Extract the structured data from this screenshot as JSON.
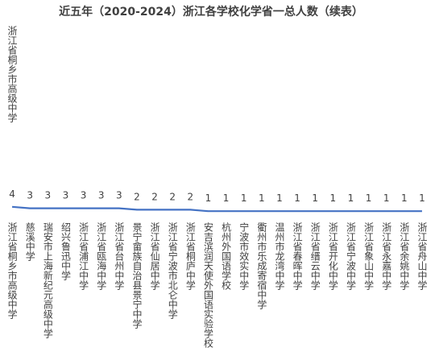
{
  "chart_data": {
    "type": "line",
    "title": "近五年（2020-2024）浙江各学校化学省一总人数（续表）",
    "overlap_label": "浙江省桐乡市高级中学",
    "categories": [
      "浙江省桐乡市高级中学",
      "慈溪中学",
      "瑞安市上海新纪元高级中学",
      "绍兴鲁迅中学",
      "浙江省浦江中学",
      "浙江省瓯海中学",
      "浙江省台州中学",
      "景宁畲族自治县景宁中学",
      "浙江省仙居中学",
      "浙江省宁波市北仑中学",
      "浙江省桐庐中学",
      "安吉滨润天使外国语实验学校",
      "杭州外国语学校",
      "宁波市效实中学",
      "衢州市乐成寄宿中学",
      "温州市龙湾中学",
      "浙江省春晖中学",
      "浙江省缙云中学",
      "浙江省开化中学",
      "浙江省宁波中学",
      "浙江省象山中学",
      "浙江省永嘉中学",
      "浙江省余姚中学",
      "浙江省舟山中学"
    ],
    "values": [
      4,
      3,
      3,
      3,
      3,
      3,
      3,
      2,
      2,
      2,
      2,
      1,
      1,
      1,
      1,
      1,
      1,
      1,
      1,
      1,
      1,
      1,
      1,
      1
    ],
    "color": "#4472c4",
    "ylim": [
      0,
      130
    ]
  }
}
